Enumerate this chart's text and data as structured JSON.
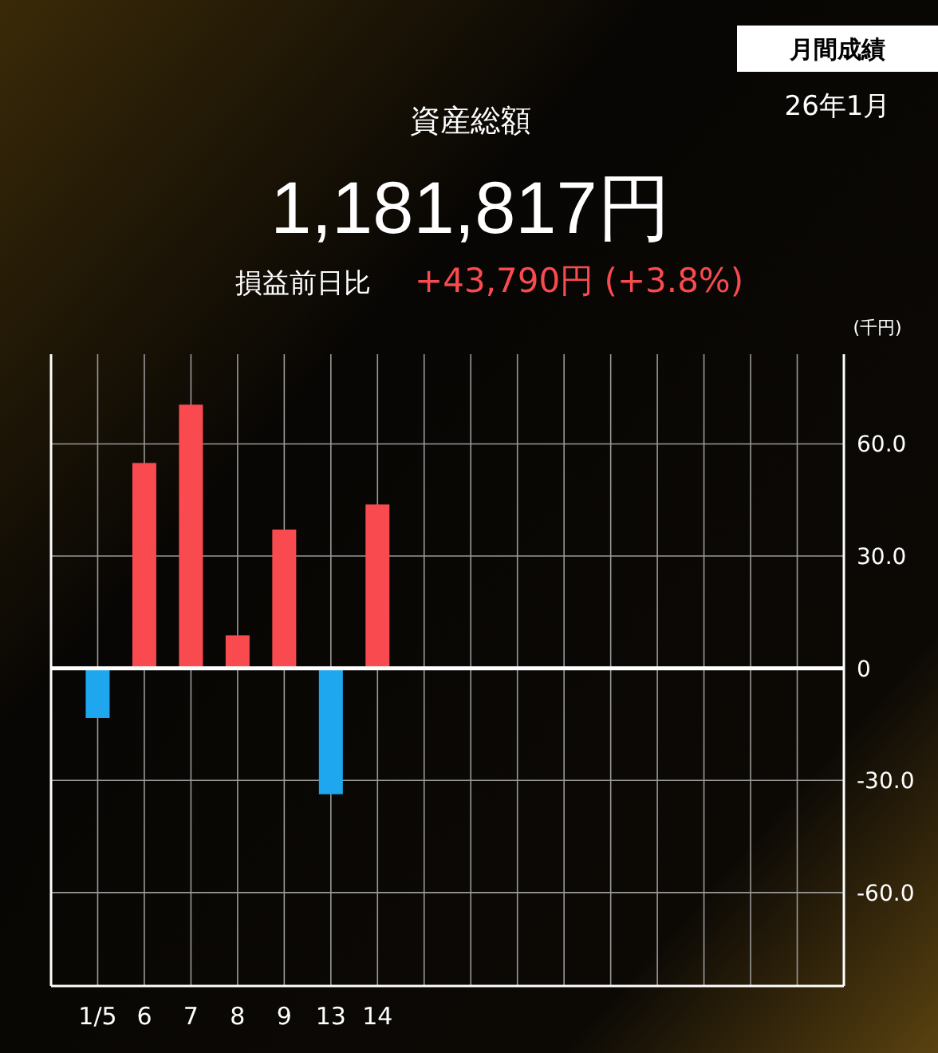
{
  "chart_data": {
    "type": "bar",
    "title": "資産総額",
    "subtitle": "1,181,817円",
    "ylabel": "(千円)",
    "annotations": [
      "損益前日比",
      "+43,790円 (+3.8%)",
      "月間成績",
      "26年1月"
    ],
    "categories": [
      "1/5",
      "6",
      "7",
      "8",
      "9",
      "13",
      "14",
      null,
      null,
      null,
      null,
      null,
      null,
      null,
      null,
      null
    ],
    "values": [
      -13.3,
      54.9,
      70.5,
      8.8,
      37.1,
      -33.7,
      43.8,
      null,
      null,
      null,
      null,
      null,
      null,
      null,
      null,
      null
    ],
    "colors": [
      "#1ea7ef",
      "#f94b4f",
      "#f94b4f",
      "#f94b4f",
      "#f94b4f",
      "#1ea7ef",
      "#f94b4f",
      null,
      null,
      null,
      null,
      null,
      null,
      null,
      null,
      null
    ],
    "ylim": [
      -85,
      84
    ],
    "yticks": [
      {
        "value": 60,
        "label": "60.0"
      },
      {
        "value": 30,
        "label": "30.0"
      },
      0,
      {
        "value": -30,
        "label": "-30.0"
      },
      {
        "value": -60,
        "label": "-60.0"
      }
    ],
    "grid": true
  }
}
